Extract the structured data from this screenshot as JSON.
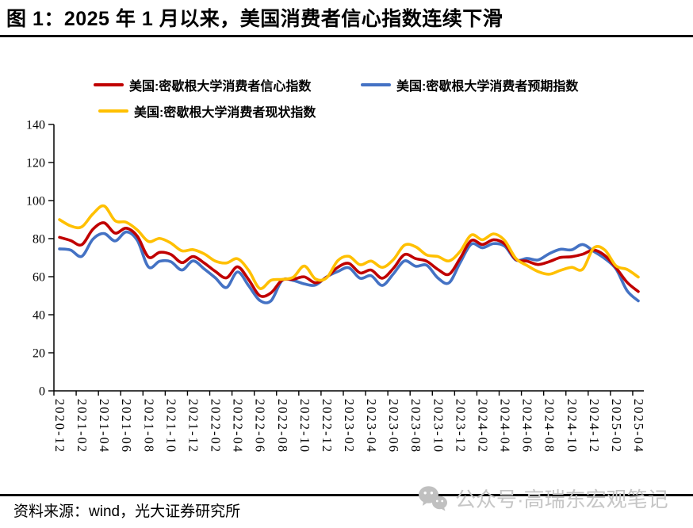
{
  "title": "图 1：2025 年 1 月以来，美国消费者信心指数连续下滑",
  "source_note": "资料来源：wind，光大证券研究所",
  "watermark": {
    "icon": "wechat-icon",
    "text": "公众号·高瑞东宏观笔记"
  },
  "colors": {
    "sentiment_red": "#C00000",
    "expectations_blue": "#4472C4",
    "current_yellow": "#FFC000",
    "axis_black": "#000000",
    "watermark_gray": "#c6c6c6"
  },
  "chart_data": {
    "type": "line",
    "title": "",
    "xlabel": "",
    "ylabel": "",
    "ylim": [
      0,
      140
    ],
    "y_ticks": [
      0,
      20,
      40,
      60,
      80,
      100,
      120,
      140
    ],
    "grid": false,
    "legend_position": "top",
    "x": [
      "2020-12",
      "2021-01",
      "2021-02",
      "2021-03",
      "2021-04",
      "2021-05",
      "2021-06",
      "2021-07",
      "2021-08",
      "2021-09",
      "2021-10",
      "2021-11",
      "2021-12",
      "2022-01",
      "2022-02",
      "2022-03",
      "2022-04",
      "2022-05",
      "2022-06",
      "2022-07",
      "2022-08",
      "2022-09",
      "2022-10",
      "2022-11",
      "2022-12",
      "2023-01",
      "2023-02",
      "2023-03",
      "2023-04",
      "2023-05",
      "2023-06",
      "2023-07",
      "2023-08",
      "2023-09",
      "2023-10",
      "2023-11",
      "2023-12",
      "2024-01",
      "2024-02",
      "2024-03",
      "2024-04",
      "2024-05",
      "2024-06",
      "2024-07",
      "2024-08",
      "2024-09",
      "2024-10",
      "2024-11",
      "2024-12",
      "2025-01",
      "2025-02",
      "2025-03",
      "2025-04"
    ],
    "x_tick_labels": [
      "2020-12",
      "2021-02",
      "2021-04",
      "2021-06",
      "2021-08",
      "2021-10",
      "2021-12",
      "2022-02",
      "2022-04",
      "2022-06",
      "2022-08",
      "2022-10",
      "2022-12",
      "2023-02",
      "2023-04",
      "2023-06",
      "2023-08",
      "2023-10",
      "2023-12",
      "2024-02",
      "2024-04",
      "2024-06",
      "2024-08",
      "2024-10",
      "2024-12",
      "2025-02",
      "2025-04"
    ],
    "series": [
      {
        "name": "美国:密歇根大学消费者信心指数",
        "color": "#C00000",
        "values": [
          80.7,
          79.0,
          76.8,
          84.9,
          88.3,
          82.9,
          85.5,
          81.2,
          70.3,
          72.8,
          71.7,
          67.4,
          70.6,
          67.2,
          62.8,
          59.4,
          65.2,
          58.4,
          50.0,
          51.5,
          58.2,
          58.6,
          59.9,
          56.8,
          59.7,
          64.9,
          67.0,
          62.0,
          63.5,
          59.2,
          64.4,
          71.6,
          69.5,
          68.1,
          63.8,
          61.3,
          69.7,
          79.0,
          76.9,
          79.4,
          77.2,
          69.1,
          68.2,
          66.4,
          67.9,
          70.1,
          70.5,
          71.8,
          74.0,
          71.1,
          64.7,
          57.0,
          52.2
        ]
      },
      {
        "name": "美国:密歇根大学消费者预期指数",
        "color": "#4472C4",
        "values": [
          74.6,
          74.0,
          70.7,
          79.7,
          82.7,
          78.8,
          83.5,
          79.0,
          65.1,
          68.1,
          67.9,
          63.5,
          68.3,
          64.1,
          59.4,
          54.3,
          62.5,
          55.2,
          47.5,
          47.3,
          58.0,
          58.0,
          56.2,
          55.6,
          59.9,
          62.7,
          64.7,
          59.2,
          60.5,
          55.4,
          61.5,
          68.3,
          65.5,
          66.0,
          59.3,
          56.8,
          67.4,
          77.1,
          75.2,
          77.4,
          76.0,
          68.8,
          69.6,
          68.8,
          72.1,
          74.4,
          74.1,
          76.9,
          73.3,
          69.5,
          64.0,
          52.6,
          47.3
        ]
      },
      {
        "name": "美国:密歇根大学消费者现状指数",
        "color": "#FFC000",
        "values": [
          90.0,
          86.7,
          86.2,
          93.0,
          97.2,
          89.4,
          88.6,
          84.5,
          78.5,
          80.1,
          77.7,
          73.6,
          74.2,
          72.0,
          68.2,
          67.2,
          69.4,
          63.3,
          53.8,
          58.1,
          58.6,
          59.7,
          65.6,
          58.8,
          59.4,
          68.4,
          70.7,
          66.3,
          68.2,
          64.9,
          69.0,
          76.6,
          75.7,
          71.4,
          70.6,
          68.3,
          73.3,
          81.9,
          79.4,
          82.5,
          79.0,
          69.6,
          65.9,
          62.7,
          61.3,
          63.3,
          64.9,
          63.9,
          75.1,
          74.0,
          65.7,
          63.8,
          59.8
        ]
      }
    ]
  }
}
